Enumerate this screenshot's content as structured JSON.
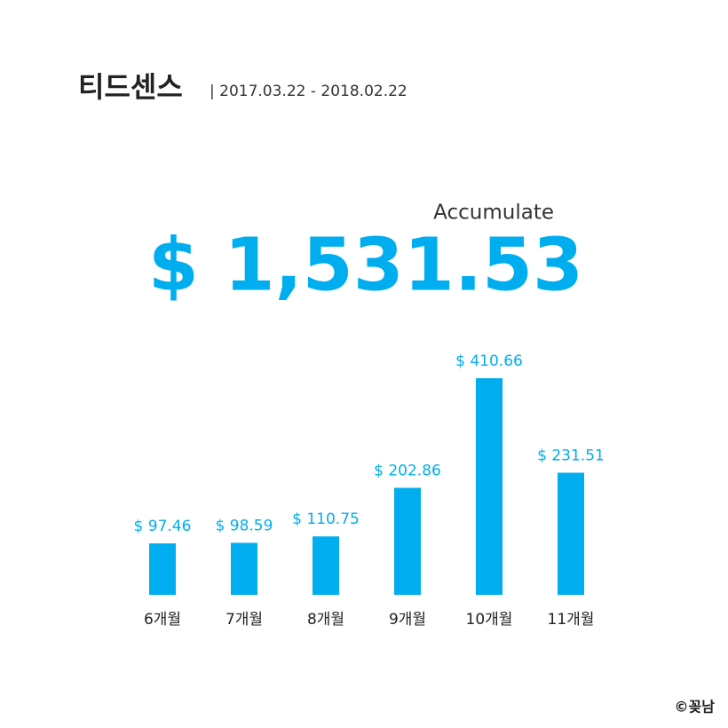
{
  "title": "티드센스",
  "subtitle": "| 2017.03.22 - 2018.02.22",
  "total_caption": "Accumulate",
  "total": {
    "value": 1531.53,
    "label": "$ 1,531.53"
  },
  "credit": "©꽂남",
  "chart_data": {
    "type": "bar",
    "categories": [
      "6개월",
      "7개월",
      "8개월",
      "9개월",
      "10개월",
      "11개월"
    ],
    "values": [
      97.46,
      98.59,
      110.75,
      202.86,
      410.66,
      231.51
    ],
    "value_labels": [
      "$ 97.46",
      "$ 98.59",
      "$ 110.75",
      "$ 202.86",
      "$ 410.66",
      "$ 231.51"
    ],
    "color": "#00aeef"
  }
}
